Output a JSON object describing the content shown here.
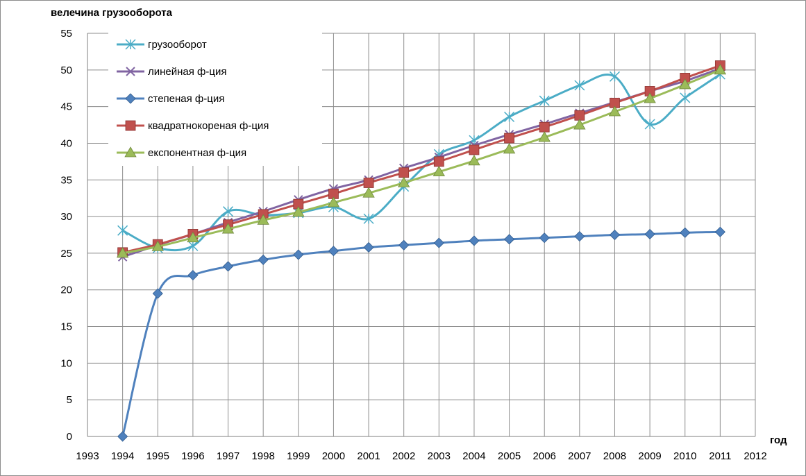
{
  "chart_data": {
    "type": "line",
    "ylabel": "велечина грузооборота",
    "xlabel": "год",
    "xlim": [
      1993,
      2012
    ],
    "ylim": [
      0,
      55
    ],
    "ytick_step": 5,
    "grid": true,
    "legend_position": "top-left",
    "x_ticks": [
      "1993",
      "1994",
      "1995",
      "1996",
      "1997",
      "1998",
      "1999",
      "2000",
      "2001",
      "2002",
      "2003",
      "2004",
      "2005",
      "2006",
      "2007",
      "2008",
      "2009",
      "2010",
      "2011",
      "2012"
    ],
    "y_ticks": [
      "0",
      "5",
      "10",
      "15",
      "20",
      "25",
      "30",
      "35",
      "40",
      "45",
      "50",
      "55"
    ],
    "x": [
      1994,
      1995,
      1996,
      1997,
      1998,
      1999,
      2000,
      2001,
      2002,
      2003,
      2004,
      2005,
      2006,
      2007,
      2008,
      2009,
      2010,
      2011
    ],
    "series": [
      {
        "name": "грузооборот",
        "color": "#4BACC6",
        "marker": "star",
        "values": [
          28.1,
          25.7,
          26.0,
          30.7,
          30.2,
          30.5,
          31.3,
          29.7,
          34.1,
          38.5,
          40.4,
          43.6,
          45.8,
          47.9,
          49.1,
          42.6,
          46.2,
          49.4
        ]
      },
      {
        "name": "линейная ф-ция",
        "color": "#8064A2",
        "marker": "x",
        "values": [
          24.5,
          26.1,
          27.6,
          29.2,
          30.7,
          32.3,
          33.8,
          35.0,
          36.6,
          38.1,
          39.7,
          41.2,
          42.6,
          44.1,
          45.6,
          47.1,
          48.5,
          50.2
        ]
      },
      {
        "name": "степеная ф-ция",
        "color": "#4F81BD",
        "marker": "diamond",
        "values": [
          0.0,
          19.5,
          22.0,
          23.2,
          24.1,
          24.8,
          25.3,
          25.8,
          26.1,
          26.4,
          26.7,
          26.9,
          27.1,
          27.3,
          27.5,
          27.6,
          27.8,
          27.9
        ]
      },
      {
        "name": "квадратнокореная ф-ция",
        "color": "#C0504D",
        "marker": "square",
        "values": [
          25.1,
          26.2,
          27.6,
          28.9,
          30.3,
          31.7,
          33.1,
          34.6,
          36.0,
          37.5,
          39.1,
          40.7,
          42.2,
          43.8,
          45.5,
          47.1,
          48.9,
          50.6
        ]
      },
      {
        "name": "експонентная ф-ция",
        "color": "#9BBB59",
        "marker": "triangle",
        "values": [
          25.0,
          25.9,
          27.1,
          28.3,
          29.5,
          30.6,
          31.9,
          33.2,
          34.6,
          36.1,
          37.6,
          39.2,
          40.8,
          42.5,
          44.3,
          46.1,
          48.0,
          50.0
        ]
      }
    ]
  }
}
